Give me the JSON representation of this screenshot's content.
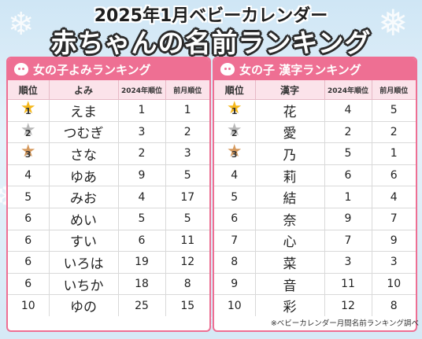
{
  "title": {
    "top": "2025年1月ベビーカレンダー",
    "main": "赤ちゃんの名前ランキング"
  },
  "left_panel": {
    "heading": "女の子よみランキング",
    "columns": [
      "順位",
      "よみ",
      "2024年順位",
      "前月順位"
    ],
    "rows": [
      {
        "rank": "1",
        "name": "えま",
        "y2024": "1",
        "prev": "1"
      },
      {
        "rank": "2",
        "name": "つむぎ",
        "y2024": "3",
        "prev": "2"
      },
      {
        "rank": "3",
        "name": "さな",
        "y2024": "2",
        "prev": "3"
      },
      {
        "rank": "4",
        "name": "ゆあ",
        "y2024": "9",
        "prev": "5"
      },
      {
        "rank": "5",
        "name": "みお",
        "y2024": "4",
        "prev": "17"
      },
      {
        "rank": "6",
        "name": "めい",
        "y2024": "5",
        "prev": "5"
      },
      {
        "rank": "6",
        "name": "すい",
        "y2024": "6",
        "prev": "11"
      },
      {
        "rank": "6",
        "name": "いろは",
        "y2024": "19",
        "prev": "12"
      },
      {
        "rank": "6",
        "name": "いちか",
        "y2024": "18",
        "prev": "8"
      },
      {
        "rank": "10",
        "name": "ゆの",
        "y2024": "25",
        "prev": "15"
      }
    ]
  },
  "right_panel": {
    "heading": "女の子 漢字ランキング",
    "columns": [
      "順位",
      "漢字",
      "2024年順位",
      "前月順位"
    ],
    "rows": [
      {
        "rank": "1",
        "name": "花",
        "y2024": "4",
        "prev": "5"
      },
      {
        "rank": "2",
        "name": "愛",
        "y2024": "2",
        "prev": "2"
      },
      {
        "rank": "3",
        "name": "乃",
        "y2024": "5",
        "prev": "1"
      },
      {
        "rank": "4",
        "name": "莉",
        "y2024": "6",
        "prev": "6"
      },
      {
        "rank": "5",
        "name": "結",
        "y2024": "1",
        "prev": "4"
      },
      {
        "rank": "6",
        "name": "奈",
        "y2024": "9",
        "prev": "7"
      },
      {
        "rank": "7",
        "name": "心",
        "y2024": "7",
        "prev": "9"
      },
      {
        "rank": "8",
        "name": "菜",
        "y2024": "3",
        "prev": "3"
      },
      {
        "rank": "9",
        "name": "音",
        "y2024": "11",
        "prev": "10"
      },
      {
        "rank": "10",
        "name": "彩",
        "y2024": "12",
        "prev": "8"
      }
    ]
  },
  "medal_colors": {
    "gold": "#f5b81c",
    "silver": "#b8b8b8",
    "bronze": "#d69a5e"
  },
  "icons": {
    "header": "baby-face-icon",
    "medal": "star-medal-icon"
  },
  "footnote": "※ベビーカレンダー月間名前ランキング調べ"
}
